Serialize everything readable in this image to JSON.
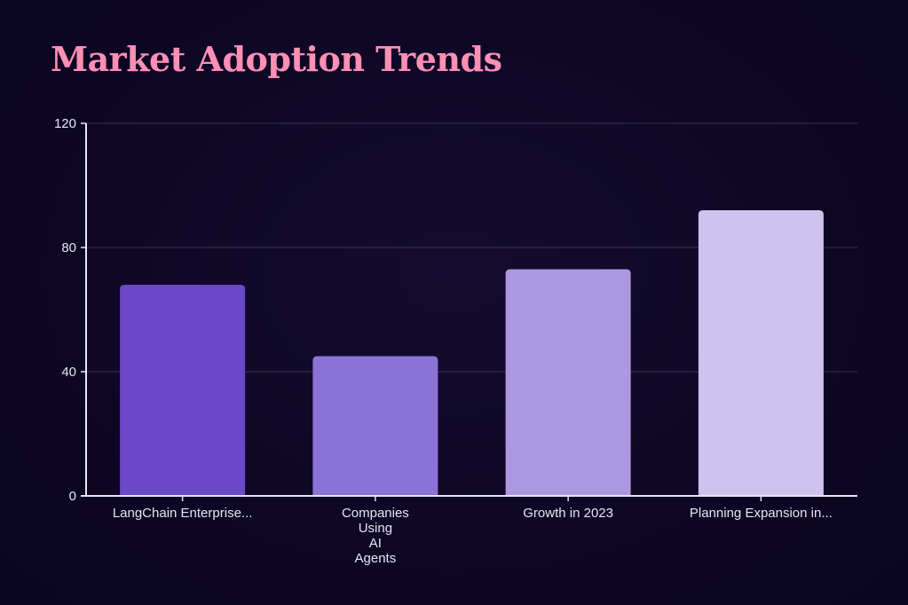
{
  "title": "Market Adoption Trends",
  "colors": {
    "background": "#0c0623",
    "title": "#ff8fb4",
    "axis": "#e8e4f2",
    "grid": "#3a3352",
    "bars": [
      "#6a48c9",
      "#8b72d6",
      "#ac98e1",
      "#cdc3ee"
    ]
  },
  "chart_data": {
    "type": "bar",
    "title": "Market Adoption Trends",
    "categories": [
      "LangChain Enterprise...",
      "Companies Using AI Agents",
      "Growth in 2023",
      "Planning Expansion in..."
    ],
    "category_label_lines": [
      [
        "LangChain Enterprise..."
      ],
      [
        "Companies",
        "Using",
        "AI",
        "Agents"
      ],
      [
        "Growth in 2023"
      ],
      [
        "Planning Expansion in..."
      ]
    ],
    "values": [
      68,
      45,
      73,
      92
    ],
    "xlabel": "",
    "ylabel": "",
    "ylim": [
      0,
      120
    ],
    "yticks": [
      0,
      40,
      80,
      120
    ],
    "grid": true,
    "legend": "none"
  }
}
